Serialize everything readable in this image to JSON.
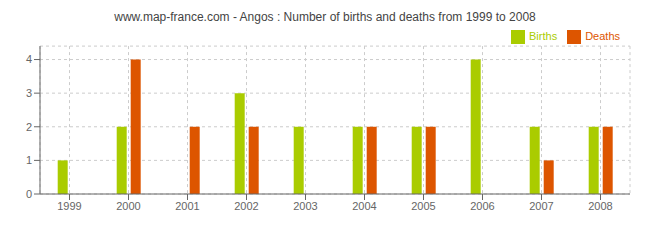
{
  "chart_data": {
    "type": "bar",
    "title": "www.map-france.com - Angos : Number of births and deaths from 1999 to 2008",
    "categories": [
      "1999",
      "2000",
      "2001",
      "2002",
      "2003",
      "2004",
      "2005",
      "2006",
      "2007",
      "2008"
    ],
    "series": [
      {
        "name": "Births",
        "color": "#aacc00",
        "values": [
          1,
          2,
          0,
          3,
          2,
          2,
          2,
          4,
          2,
          2
        ]
      },
      {
        "name": "Deaths",
        "color": "#dd5500",
        "values": [
          0,
          4,
          2,
          2,
          0,
          2,
          2,
          0,
          1,
          2
        ]
      }
    ],
    "ylim": [
      0,
      4.4
    ],
    "yticks": [
      0,
      1,
      2,
      3,
      4
    ],
    "grid": true,
    "legend": "upper right"
  }
}
